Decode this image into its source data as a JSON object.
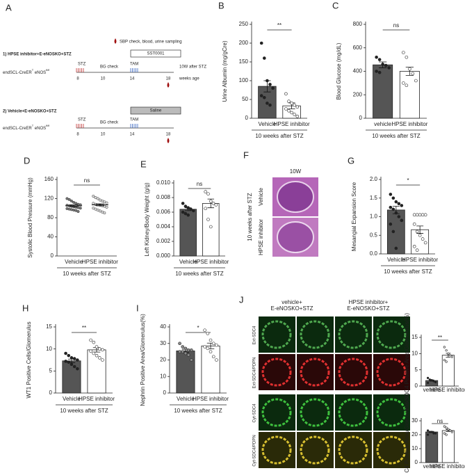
{
  "diagram": {
    "label": "A",
    "legend": "SBP check, blood, urine sampling",
    "groups": [
      {
        "title": "1) HPSE inhibitor+E-eNOSKO+STZ",
        "treatment": "SST0001",
        "mouse_a": "endSCL-CreER",
        "mouse_sup1": "T",
        "mouse_b": " eNOS",
        "mouse_sup2": "fl/fl",
        "stz": "STZ",
        "bg": "BG check",
        "tam": "TAM",
        "end": "10W after STZ",
        "weeks": [
          "8",
          "10",
          "14",
          "18"
        ],
        "unit": "weeks age"
      },
      {
        "title": "2) Vehicle+E-eNOSKO+STZ",
        "treatment": "Saline",
        "mouse_a": "endSCL-CreER",
        "mouse_sup1": "T",
        "mouse_b": " eNOS",
        "mouse_sup2": "fl/fl",
        "stz": "STZ",
        "bg": "BG check",
        "tam": "TAM",
        "weeks": [
          "8",
          "10",
          "14",
          "18"
        ]
      }
    ]
  },
  "images": {
    "f": {
      "label": "F",
      "title": "10W",
      "side": "10 weeks after STZ",
      "rows": [
        "Vehicle",
        "HPSE inhibitor"
      ]
    },
    "j": {
      "label": "J",
      "columns": [
        [
          "vehicle+",
          "E-eNOSKO+STZ"
        ],
        [
          "HPSE inhibitor+",
          "E-eNOSKO+STZ"
        ]
      ],
      "rows": [
        "Ext-SDC4",
        "Ext-SDC4/PDPN",
        "Cyt-SDC4",
        "Cyt-SDC4/PDPN"
      ]
    }
  },
  "chart_data": [
    {
      "type": "bar",
      "label": "B",
      "ylabel": "Urine Albumin (mg/gCre)",
      "categories": [
        "Vehicle",
        "HPSE inhibitor"
      ],
      "xlabel": "10 weeks after STZ",
      "sig": "**",
      "values": [
        85,
        33
      ],
      "errors": [
        15,
        8
      ],
      "colors": [
        "#555555",
        "#ffffff"
      ],
      "point_colors": [
        "#222222",
        "#ffffff"
      ],
      "points": [
        [
          200,
          160,
          100,
          90,
          80,
          60,
          55,
          40,
          35
        ],
        [
          65,
          45,
          40,
          35,
          30,
          25,
          20,
          15,
          10,
          5
        ]
      ],
      "ylim": [
        0,
        250
      ],
      "yticks": [
        0,
        50,
        100,
        150,
        200,
        250
      ]
    },
    {
      "type": "bar",
      "label": "C",
      "ylabel": "Blood Glucose (mg/dL)",
      "categories": [
        "vehicle",
        "HPSE inhibitor"
      ],
      "xlabel": "10 weeks after STZ",
      "sig": "ns",
      "values": [
        455,
        400
      ],
      "errors": [
        25,
        35
      ],
      "colors": [
        "#555555",
        "#ffffff"
      ],
      "point_colors": [
        "#222222",
        "#ffffff"
      ],
      "points": [
        [
          520,
          500,
          460,
          450,
          430,
          400,
          390
        ],
        [
          560,
          520,
          420,
          380,
          320,
          300,
          280
        ]
      ],
      "ylim": [
        0,
        800
      ],
      "yticks": [
        0,
        200,
        400,
        600,
        800
      ]
    },
    {
      "type": "dot",
      "label": "D",
      "ylabel": "Systolic Blood Pressure (mmHg)",
      "categories": [
        "Vehicle",
        "HPSE inhibitor"
      ],
      "xlabel": "10 weeks after STZ",
      "sig": "ns",
      "values": [
        105,
        107
      ],
      "errors": [
        2,
        2
      ],
      "colors": [
        "#777777",
        "#dddddd"
      ],
      "points": [
        [
          120,
          118,
          115,
          112,
          110,
          108,
          107,
          106,
          105,
          104,
          103,
          102,
          101,
          100,
          99,
          98,
          97,
          96,
          95,
          93
        ],
        [
          125,
          122,
          120,
          117,
          115,
          113,
          111,
          110,
          108,
          107,
          106,
          105,
          104,
          102,
          100,
          98,
          96,
          94,
          92,
          90
        ]
      ],
      "ylim": [
        0,
        160
      ],
      "yticks": [
        0,
        40,
        80,
        120,
        160
      ]
    },
    {
      "type": "bar",
      "label": "E",
      "ylabel": "Left Kidney/Body Weight (g/g)",
      "categories": [
        "Vehicle",
        "HPSE inhibitor"
      ],
      "xlabel": "10 weeks after STZ",
      "sig": "ns",
      "values": [
        0.0064,
        0.0072
      ],
      "errors": [
        0.0002,
        0.0006
      ],
      "colors": [
        "#555555",
        "#ffffff"
      ],
      "point_colors": [
        "#222222",
        "#ffffff"
      ],
      "points": [
        [
          0.0072,
          0.0068,
          0.0066,
          0.0064,
          0.0062,
          0.006,
          0.0058,
          0.0056
        ],
        [
          0.0088,
          0.0085,
          0.0075,
          0.0072,
          0.007,
          0.0065,
          0.005,
          0.004
        ]
      ],
      "ylim": [
        0,
        0.01
      ],
      "yticks": [
        {
          "value": 0,
          "label": "0.000"
        },
        {
          "value": 0.002,
          "label": "0.002"
        },
        {
          "value": 0.004,
          "label": "0.004"
        },
        {
          "value": 0.006,
          "label": "0.006"
        },
        {
          "value": 0.008,
          "label": "0.008"
        },
        {
          "value": 0.01,
          "label": "0.010"
        }
      ]
    },
    {
      "type": "bar",
      "label": "G",
      "ylabel": "Mesangial Expansion Score",
      "categories": [
        "Vehicle",
        "HPSE inhibitor"
      ],
      "xlabel": "10 weeks after STZ",
      "sig": "*",
      "values": [
        1.18,
        0.65
      ],
      "errors": [
        0.1,
        0.1
      ],
      "colors": [
        "#555555",
        "#ffffff"
      ],
      "point_colors": [
        "#222222",
        "#ffffff"
      ],
      "points": [
        [
          1.6,
          1.5,
          1.4,
          1.35,
          1.3,
          1.25,
          1.2,
          1.1,
          1.0,
          0.9,
          0.8,
          0.6,
          0.15
        ],
        [
          1.05,
          1.05,
          1.05,
          1.05,
          1.05,
          0.8,
          0.6,
          0.5,
          0.4,
          0.3,
          0.2,
          0.1
        ]
      ],
      "ylim": [
        0,
        2
      ],
      "yticks": [
        {
          "value": 0,
          "label": "0.0"
        },
        {
          "value": 0.5,
          "label": "0.5"
        },
        {
          "value": 1,
          "label": "1.0"
        },
        {
          "value": 1.5,
          "label": "1.5"
        },
        {
          "value": 2,
          "label": "2.0"
        }
      ]
    },
    {
      "type": "bar",
      "label": "H",
      "ylabel": "WT1 Positive Cells/Glomerulus",
      "categories": [
        "Vehicle",
        "HPSE inhibitor"
      ],
      "xlabel": "10 weeks after STZ",
      "sig": "**",
      "values": [
        7.3,
        9.8
      ],
      "errors": [
        0.4,
        0.5
      ],
      "colors": [
        "#555555",
        "#ffffff"
      ],
      "point_colors": [
        "#222222",
        "#ffffff"
      ],
      "points": [
        [
          9,
          8.5,
          8,
          7.8,
          7.5,
          7.2,
          7,
          6.5,
          6,
          5.5
        ],
        [
          12,
          11.5,
          10.5,
          10,
          9.8,
          9.5,
          9,
          8.5,
          8,
          7.5
        ]
      ],
      "ylim": [
        0,
        15
      ],
      "yticks": [
        0,
        5,
        10,
        15
      ]
    },
    {
      "type": "bar",
      "label": "I",
      "ylabel": "Nephrin Positive Area/Glomerulus(%)",
      "categories": [
        "Vehicle",
        "HPSE inhibitor"
      ],
      "xlabel": "10 weeks after STZ",
      "sig": "*",
      "values": [
        25.5,
        28.5
      ],
      "errors": [
        1,
        1.7
      ],
      "colors": [
        "#555555",
        "#ffffff"
      ],
      "point_colors": [
        "#888888",
        "#ffffff"
      ],
      "points": [
        [
          30,
          28,
          27,
          26,
          26,
          25,
          25,
          24,
          23,
          20
        ],
        [
          38,
          36,
          32,
          30,
          29,
          28,
          27,
          25,
          22,
          20
        ]
      ],
      "ylim": [
        0,
        40
      ],
      "yticks": [
        0,
        10,
        20,
        30,
        40
      ]
    },
    {
      "type": "bar",
      "ylabel": "Ext-SDC4 Positive Area/Glomerulus(%)",
      "categories": [
        "vehicle",
        "HPSE inhibitor"
      ],
      "sig": "**",
      "values": [
        1.7,
        9.5
      ],
      "errors": [
        0.2,
        0.6
      ],
      "colors": [
        "#555555",
        "#ffffff"
      ],
      "point_colors": [
        "#222222",
        "#ffffff"
      ],
      "points": [
        [
          2.5,
          2,
          1.8,
          1.5,
          1.2,
          1
        ],
        [
          12,
          11,
          10,
          9.5,
          9,
          8,
          7.5
        ]
      ],
      "ylim": [
        0,
        15
      ],
      "yticks": [
        0,
        5,
        10,
        15
      ]
    },
    {
      "type": "bar",
      "ylabel": "Cyt-SDC4 Positive Area/Glomerulus(%)",
      "categories": [
        "vehicle",
        "HPSE inhibitor"
      ],
      "sig": "ns",
      "values": [
        22,
        23
      ],
      "errors": [
        0.4,
        0.7
      ],
      "colors": [
        "#555555",
        "#ffffff"
      ],
      "point_colors": [
        "#222222",
        "#ffffff"
      ],
      "points": [
        [
          23,
          22,
          22,
          21,
          21,
          20
        ],
        [
          26,
          25,
          24,
          23,
          22,
          21,
          20
        ]
      ],
      "ylim": [
        0,
        30
      ],
      "yticks": [
        0,
        10,
        20,
        30
      ]
    }
  ]
}
